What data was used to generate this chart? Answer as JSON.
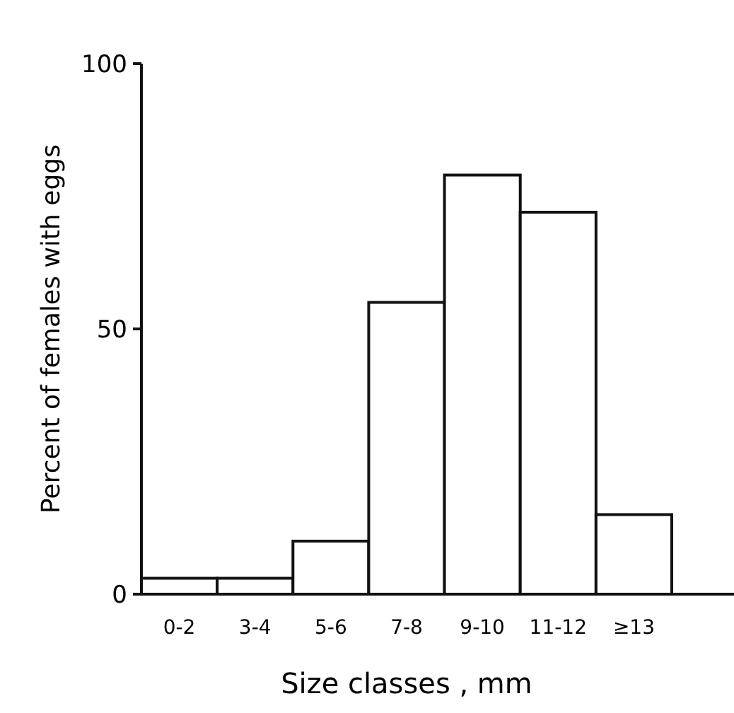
{
  "chart_data": {
    "type": "bar",
    "xlabel": "Size classes , mm",
    "ylabel": "Percent of females with eggs",
    "categories": [
      "0-2",
      "3-4",
      "5-6",
      "7-8",
      "9-10",
      "11-12",
      "≥13"
    ],
    "values": [
      3,
      3,
      10,
      55,
      79,
      72,
      15
    ],
    "color": "#ffffff",
    "ylim": [
      0,
      100
    ],
    "yticks": [
      0,
      50,
      100
    ],
    "grid": false
  }
}
